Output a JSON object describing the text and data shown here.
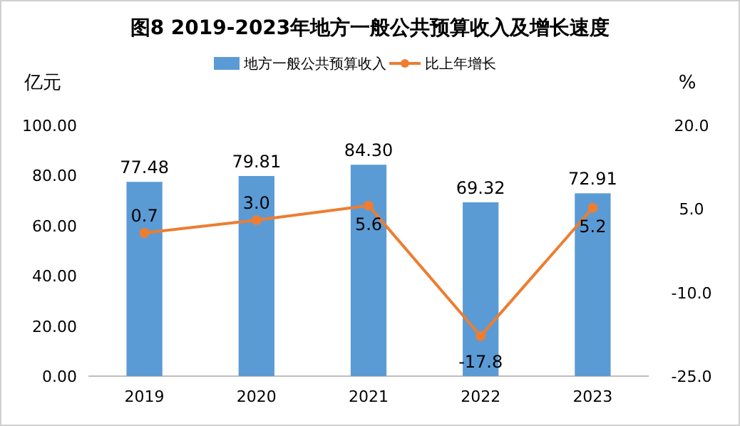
{
  "chart_data": {
    "type": "bar",
    "title": "图8  2019-2023年地方一般公共预算收入及增长速度",
    "ylabel": "亿元",
    "y2label": "%",
    "categories": [
      "2019",
      "2020",
      "2021",
      "2022",
      "2023"
    ],
    "series": [
      {
        "name": "地方一般公共预算收入",
        "color": "#5b9bd5",
        "values": [
          77.48,
          79.81,
          84.3,
          69.32,
          72.91
        ],
        "value_labels": [
          "77.48",
          "79.81",
          "84.30",
          "69.32",
          "72.91"
        ]
      },
      {
        "name": "比上年增长",
        "type": "line",
        "axis": "y2",
        "color": "#ed7d31",
        "marker": "circle",
        "values": [
          0.7,
          3.0,
          5.6,
          -17.8,
          5.2
        ],
        "value_labels": [
          "0.7",
          "3.0",
          "5.6",
          "-17.8",
          "5.2"
        ]
      }
    ],
    "ylim": [
      0,
      100
    ],
    "yticks": [
      {
        "value": 0,
        "label": "0.00"
      },
      {
        "value": 20,
        "label": "20.00"
      },
      {
        "value": 40,
        "label": "40.00"
      },
      {
        "value": 60,
        "label": "60.00"
      },
      {
        "value": 80,
        "label": "80.00"
      },
      {
        "value": 100,
        "label": "100.00"
      }
    ],
    "y2lim": [
      -25,
      20
    ],
    "y2ticks": [
      {
        "value": -25,
        "label": "-25.0"
      },
      {
        "value": -10,
        "label": "-10.0"
      },
      {
        "value": 5,
        "label": "5.0"
      },
      {
        "value": 20,
        "label": "20.0"
      }
    ],
    "legend": "top"
  }
}
